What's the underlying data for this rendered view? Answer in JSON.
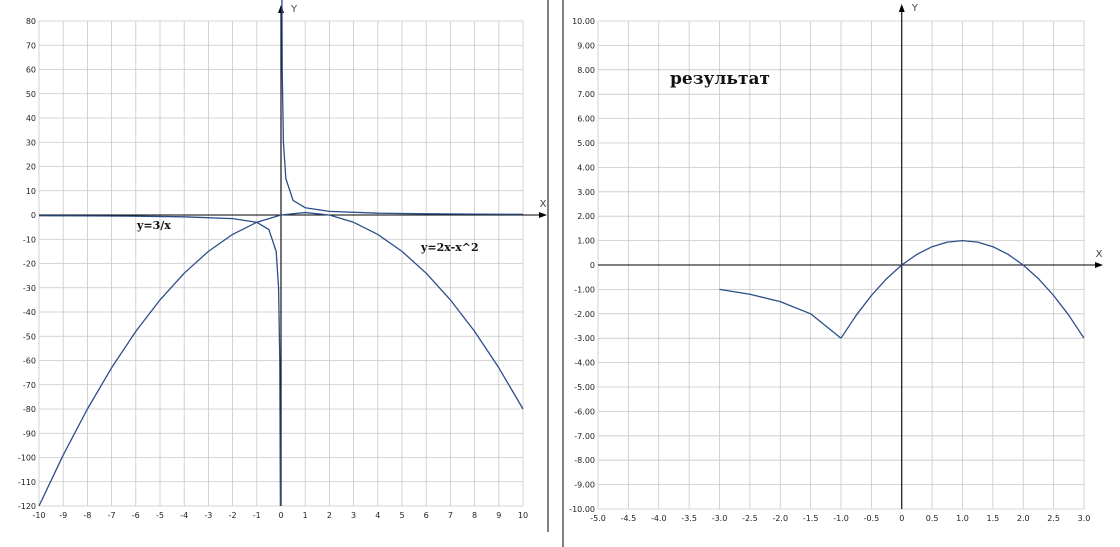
{
  "chart_data": [
    {
      "type": "line",
      "title": "",
      "xlabel": "X",
      "ylabel": "Y",
      "xlim": [
        -10,
        10
      ],
      "ylim": [
        -120,
        80
      ],
      "x_ticks": [
        -10,
        -9,
        -8,
        -7,
        -6,
        -5,
        -4,
        -3,
        -2,
        -1,
        0,
        1,
        2,
        3,
        4,
        5,
        6,
        7,
        8,
        9,
        10
      ],
      "y_ticks": [
        80,
        70,
        60,
        50,
        40,
        30,
        20,
        10,
        0,
        -10,
        -20,
        -30,
        -40,
        -50,
        -60,
        -70,
        -80,
        -90,
        -100,
        -110,
        -120
      ],
      "x_tick_labels": [
        "-10",
        "-9",
        "-8",
        "-7",
        "-6",
        "-5",
        "-4",
        "-3",
        "-2",
        "-1",
        "0",
        "1",
        "2",
        "3",
        "4",
        "5",
        "6",
        "7",
        "8",
        "9",
        "10"
      ],
      "y_tick_labels": [
        "80",
        "70",
        "60",
        "50",
        "40",
        "30",
        "20",
        "10",
        "0",
        "-10",
        "-20",
        "-30",
        "-40",
        "-50",
        "-60",
        "-70",
        "-80",
        "-90",
        "-100",
        "-110",
        "-120"
      ],
      "grid": true,
      "series": [
        {
          "name": "y=3/x",
          "x": [
            -10,
            -8,
            -6,
            -4,
            -2,
            -1,
            -0.5,
            -0.2,
            -0.1,
            -0.05,
            -0.025,
            0.025,
            0.05,
            0.1,
            0.2,
            0.5,
            1,
            2,
            4,
            6,
            8,
            10
          ],
          "y": [
            -0.3,
            -0.375,
            -0.5,
            -0.75,
            -1.5,
            -3,
            -6,
            -15,
            -30,
            -60,
            -120,
            120,
            60,
            30,
            15,
            6,
            3,
            1.5,
            0.75,
            0.5,
            0.375,
            0.3
          ]
        },
        {
          "name": "y=2x-x^2",
          "x": [
            -10,
            -9,
            -8,
            -7,
            -6,
            -5,
            -4,
            -3,
            -2,
            -1,
            0,
            1,
            2,
            3,
            4,
            5,
            6,
            7,
            8,
            9,
            10
          ],
          "y": [
            -120,
            -99,
            -80,
            -63,
            -48,
            -35,
            -24,
            -15,
            -8,
            -3,
            0,
            1,
            0,
            -3,
            -8,
            -15,
            -24,
            -35,
            -48,
            -63,
            -80
          ]
        }
      ],
      "annotations": [
        "y=3/x",
        "y=2x-x^2"
      ],
      "colors": {
        "line": "#2b4e88",
        "grid": "#c8c8c8",
        "axis": "#000000"
      }
    },
    {
      "type": "line",
      "title": "результат",
      "xlabel": "X",
      "ylabel": "Y",
      "xlim": [
        -5,
        3
      ],
      "ylim": [
        -10,
        10
      ],
      "x_ticks": [
        -5,
        -4.5,
        -4,
        -3.5,
        -3,
        -2.5,
        -2,
        -1.5,
        -1,
        -0.5,
        0,
        0.5,
        1,
        1.5,
        2,
        2.5,
        3
      ],
      "y_ticks": [
        10,
        9,
        8,
        7,
        6,
        5,
        4,
        3,
        2,
        1,
        0,
        -1,
        -2,
        -3,
        -4,
        -5,
        -6,
        -7,
        -8,
        -9,
        -10
      ],
      "x_tick_labels": [
        "-5.0",
        "-4.5",
        "-4.0",
        "-3.5",
        "-3.0",
        "-2.5",
        "-2.0",
        "-1.5",
        "-1.0",
        "-0.5",
        "0",
        "0.5",
        "1.0",
        "1.5",
        "2.0",
        "2.5",
        "3.0"
      ],
      "y_tick_labels": [
        "10.00",
        "9.00",
        "8.00",
        "7.00",
        "6.00",
        "5.00",
        "4.00",
        "3.00",
        "2.00",
        "1.00",
        "0",
        "-1.00",
        "-2.00",
        "-3.00",
        "-4.00",
        "-5.00",
        "-6.00",
        "-7.00",
        "-8.00",
        "-9.00",
        "-10.00"
      ],
      "grid": true,
      "series": [
        {
          "x": [
            -3,
            -2.5,
            -2,
            -1.5,
            -1
          ],
          "y": [
            -1,
            -1.2,
            -1.5,
            -2,
            -3
          ]
        },
        {
          "x": [
            -1,
            -0.75,
            -0.5,
            -0.25,
            0,
            0.25,
            0.5,
            0.75,
            1,
            1.25,
            1.5,
            1.75,
            2,
            2.25,
            2.5,
            2.75,
            3
          ],
          "y": [
            -3,
            -2.0625,
            -1.25,
            -0.5625,
            0,
            0.4375,
            0.75,
            0.9375,
            1,
            0.9375,
            0.75,
            0.4375,
            0,
            -0.5625,
            -1.25,
            -2.0625,
            -3
          ]
        }
      ],
      "colors": {
        "line": "#2b4e88",
        "grid": "#c8c8c8",
        "axis": "#000000"
      }
    }
  ]
}
